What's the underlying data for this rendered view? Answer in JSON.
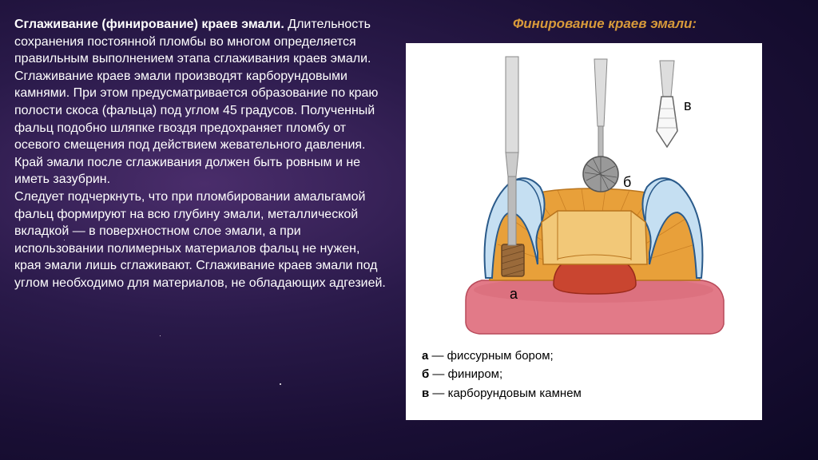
{
  "left": {
    "heading": "Сглаживание (финирование) краев эмали.",
    "body": "Длительность сохранения постоянной пломбы во многом определяется правильным выполнением этапа сглаживания краев эмали. Сглаживание краев эмали производят карборундовыми камнями. При этом предусматривается образование по краю полости скоса (фальца) под углом 45 градусов. Полученный фальц подобно шляпке гвоздя предохраняет пломбу от осевого смещения под действием жевательного давления. Край эмали после сглаживания должен быть ровным и не иметь зазубрин.\nСледует подчеркнуть, что при пломбировании амальгамой фальц формируют на всю глубину эмали, металлической вкладкой — в поверхностном слое эмали, а при использовании полимерных материалов фальц не нужен, края эмали лишь сглаживают. Сглаживание краев эмали под углом необходимо для материалов, не обладающих адгезией."
  },
  "right": {
    "title": "Финирование краев эмали:",
    "legend": {
      "a_key": "а",
      "a_text": " — фиссурным бором;",
      "b_key": "б",
      "b_text": " — финиром;",
      "c_key": "в",
      "c_text": " — карборундовым камнем"
    },
    "labels": {
      "a": "а",
      "b": "б",
      "c": "в"
    }
  },
  "colors": {
    "highlight": "#d89a3a",
    "enamel_light": "#c5dff2",
    "enamel_outline": "#2a5a8a",
    "dentin": "#e8a03a",
    "dentin_dark": "#c47a20",
    "pulp": "#c94530",
    "gum": "#d96a7a",
    "tool_metal": "#888888",
    "tool_dark": "#555555",
    "tool_brown": "#9a6a3a"
  }
}
